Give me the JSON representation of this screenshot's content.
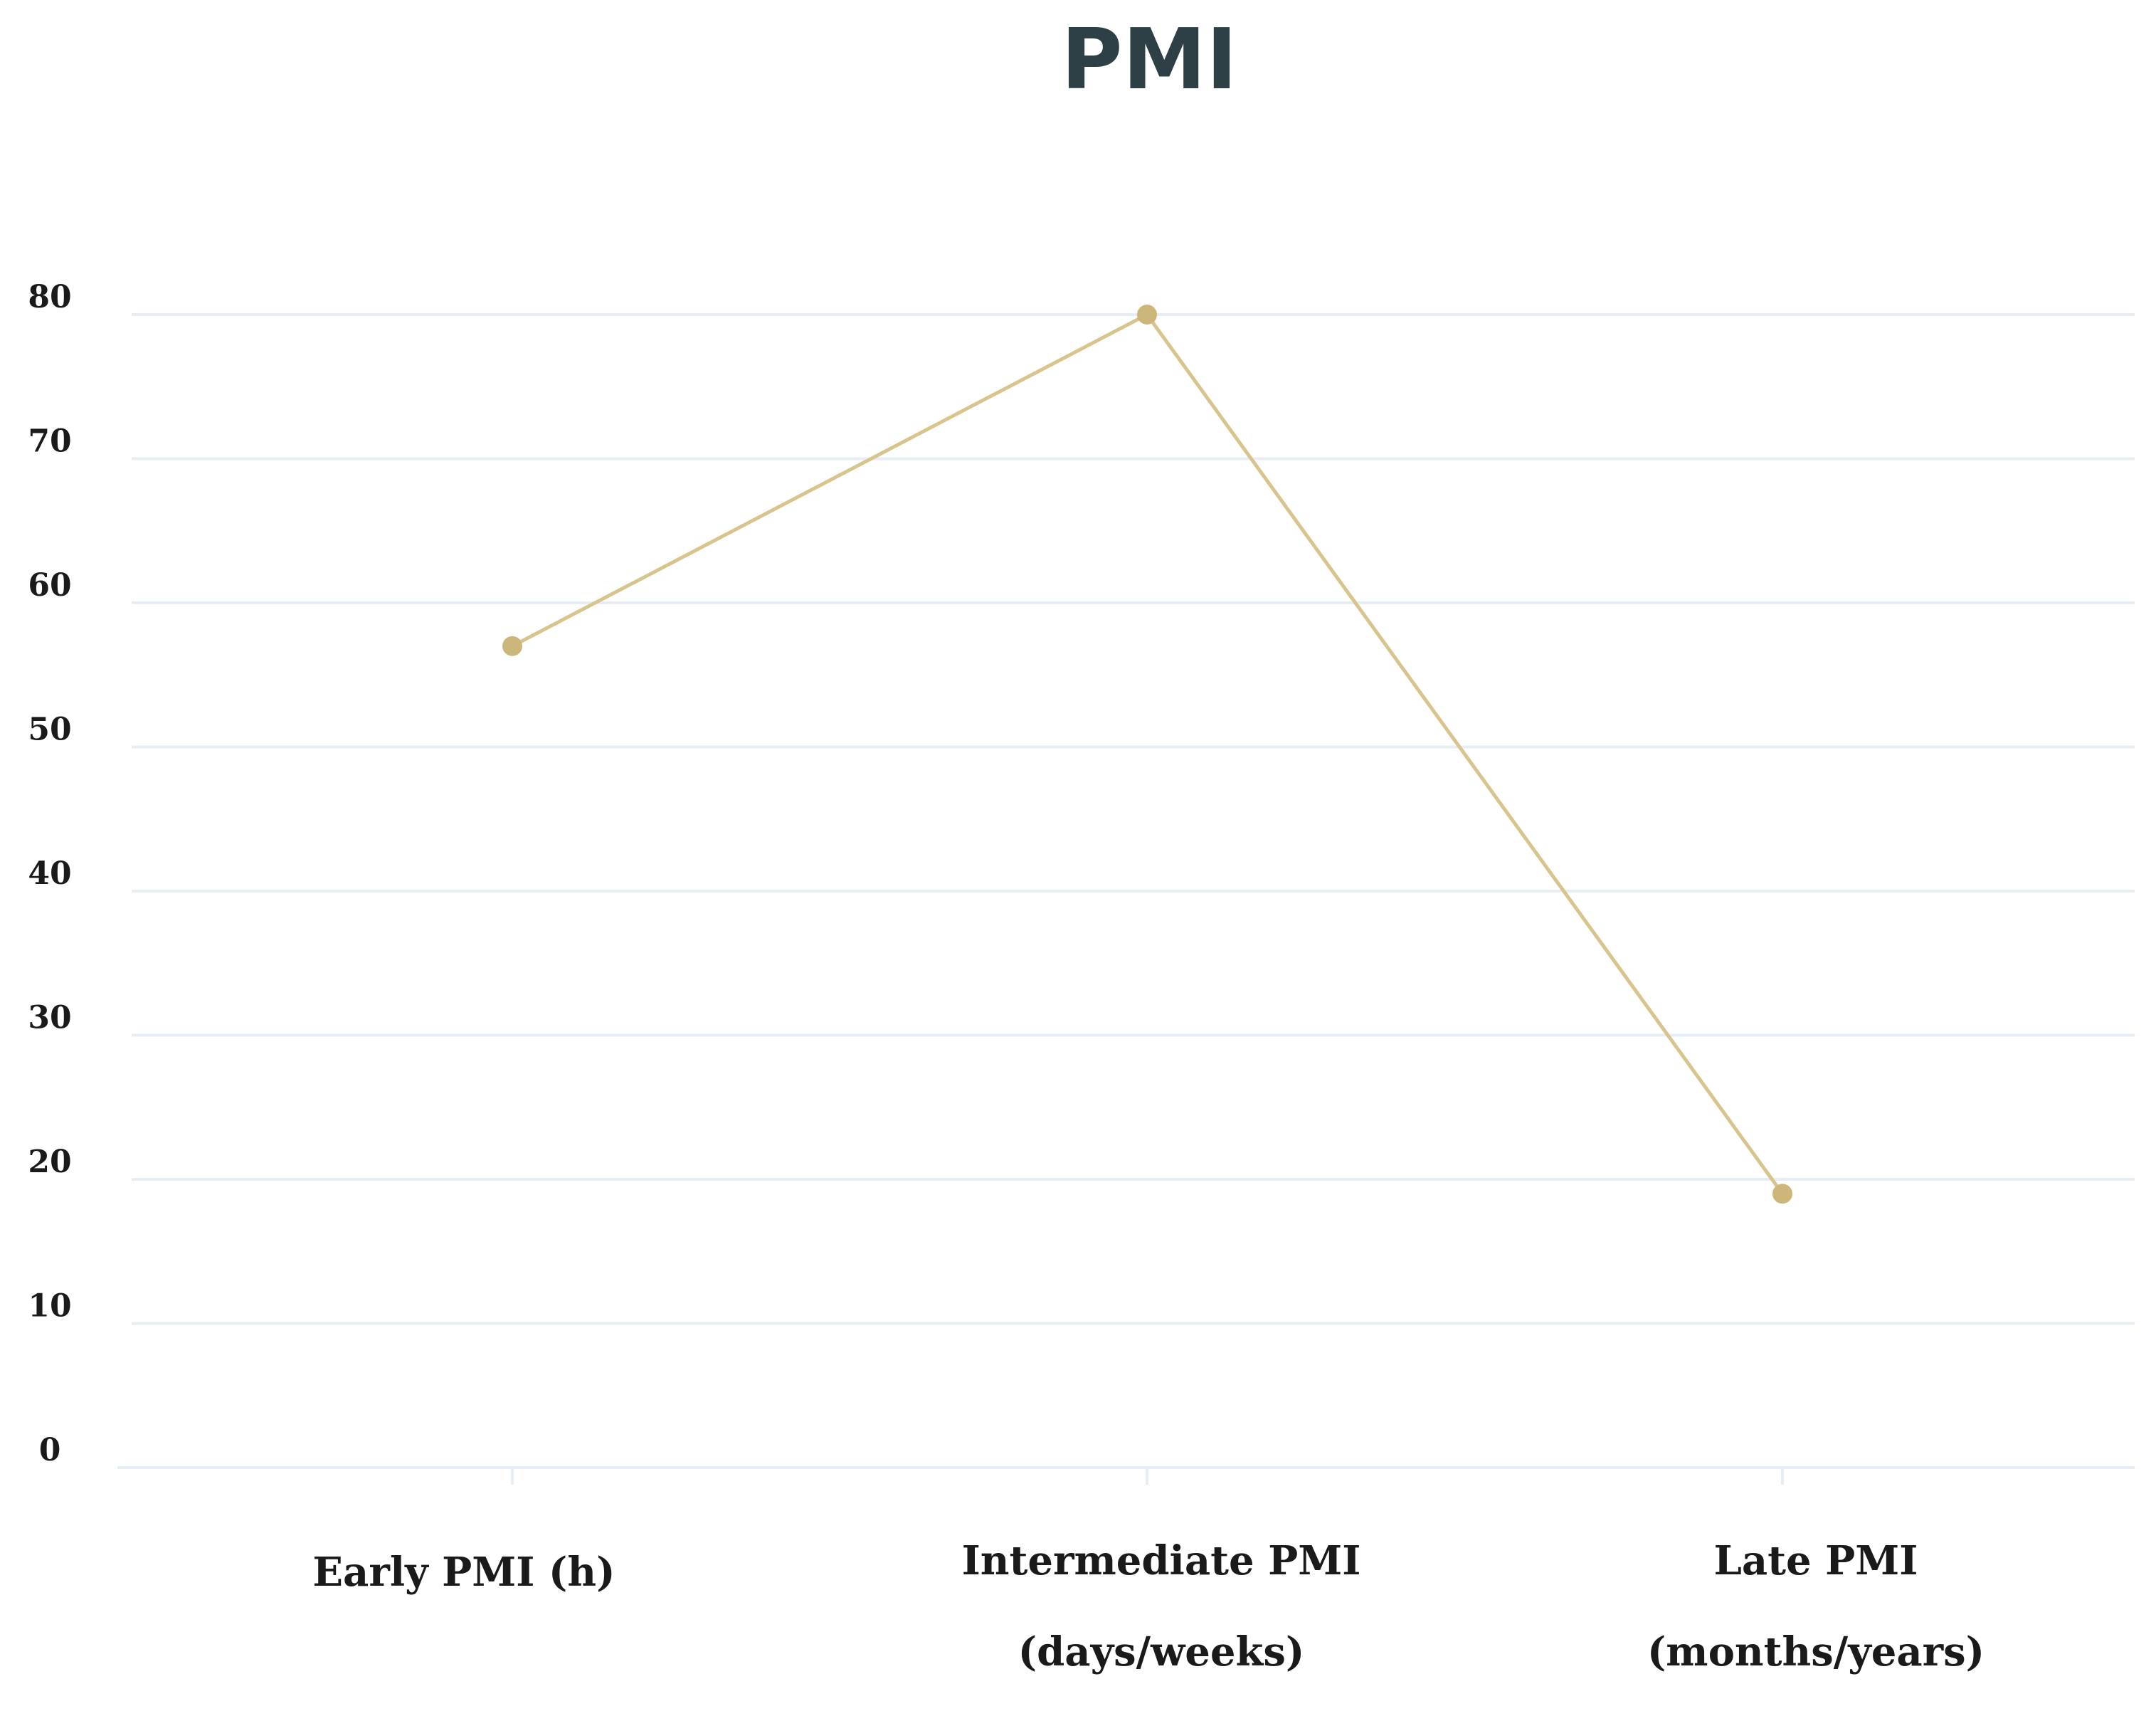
{
  "chart_data": {
    "type": "line",
    "title": "PMI",
    "xlabel": "",
    "ylabel": "",
    "categories": [
      [
        "Early PMI (h)"
      ],
      [
        "Intermediate PMI",
        "(days/weeks)"
      ],
      [
        "Late PMI",
        "(months/years)"
      ]
    ],
    "series": [
      {
        "values": [
          57,
          80,
          19
        ],
        "color": "#d8c58e"
      }
    ],
    "ylim": [
      0,
      80
    ],
    "yticks": [
      0,
      10,
      20,
      30,
      40,
      50,
      60,
      70,
      80
    ],
    "grid": true,
    "legend": "none",
    "colors": {
      "title": "#2e3f45",
      "gridline": "#e6edf5",
      "tick_label": "#1a1a1a",
      "line": "#d8c58e",
      "marker": "#cdb679"
    }
  }
}
